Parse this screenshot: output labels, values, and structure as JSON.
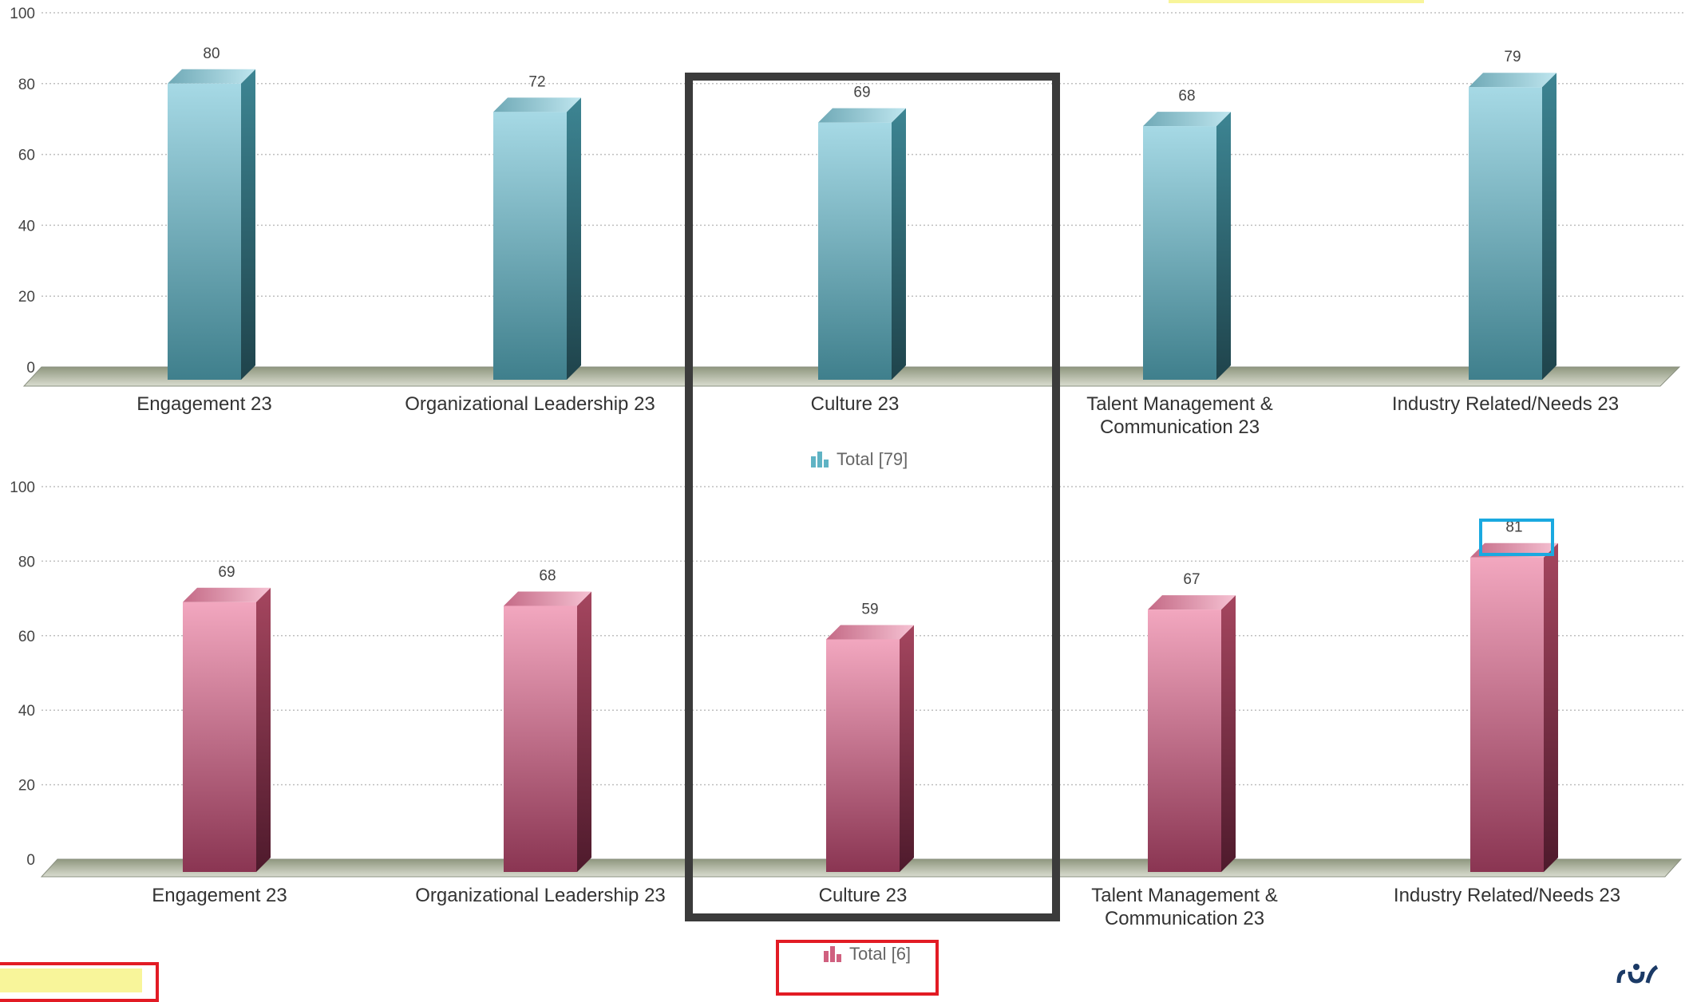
{
  "chart_data": [
    {
      "type": "bar",
      "categories": [
        "Engagement 23",
        "Organizational Leadership 23",
        "Culture 23",
        "Talent Management & Communication 23",
        "Industry Related/Needs 23"
      ],
      "series": [
        {
          "name": "Total [79]",
          "values": [
            80,
            72,
            69,
            68,
            79
          ]
        }
      ],
      "ylim": [
        0,
        100
      ],
      "yticks": [
        0,
        20,
        40,
        60,
        80,
        100
      ],
      "grid": true,
      "legend": "bottom-center",
      "color": "#4a8e9c"
    },
    {
      "type": "bar",
      "categories": [
        "Engagement 23",
        "Organizational Leadership 23",
        "Culture 23",
        "Talent Management & Communication 23",
        "Industry Related/Needs 23"
      ],
      "series": [
        {
          "name": "Total [6]",
          "values": [
            69,
            68,
            59,
            67,
            81
          ]
        }
      ],
      "ylim": [
        0,
        100
      ],
      "yticks": [
        0,
        20,
        40,
        60,
        80,
        100
      ],
      "grid": true,
      "legend": "bottom-center",
      "color": "#b0506e"
    }
  ],
  "theme": {
    "teal_light": "#a6d9e5",
    "teal_dark": "#2e6f7c",
    "pink_light": "#f2a7bf",
    "pink_dark": "#7a2a45",
    "floor": "#a3ab94",
    "grid": "#bfbfbf",
    "callout_blue": "#1aa9e0",
    "callout_red": "#e21b24",
    "highlight": "#3b3b3b"
  },
  "icons": {
    "legend": "bar-chart-icon",
    "corner": "filter-icon",
    "brand": "brand-logo-icon"
  }
}
